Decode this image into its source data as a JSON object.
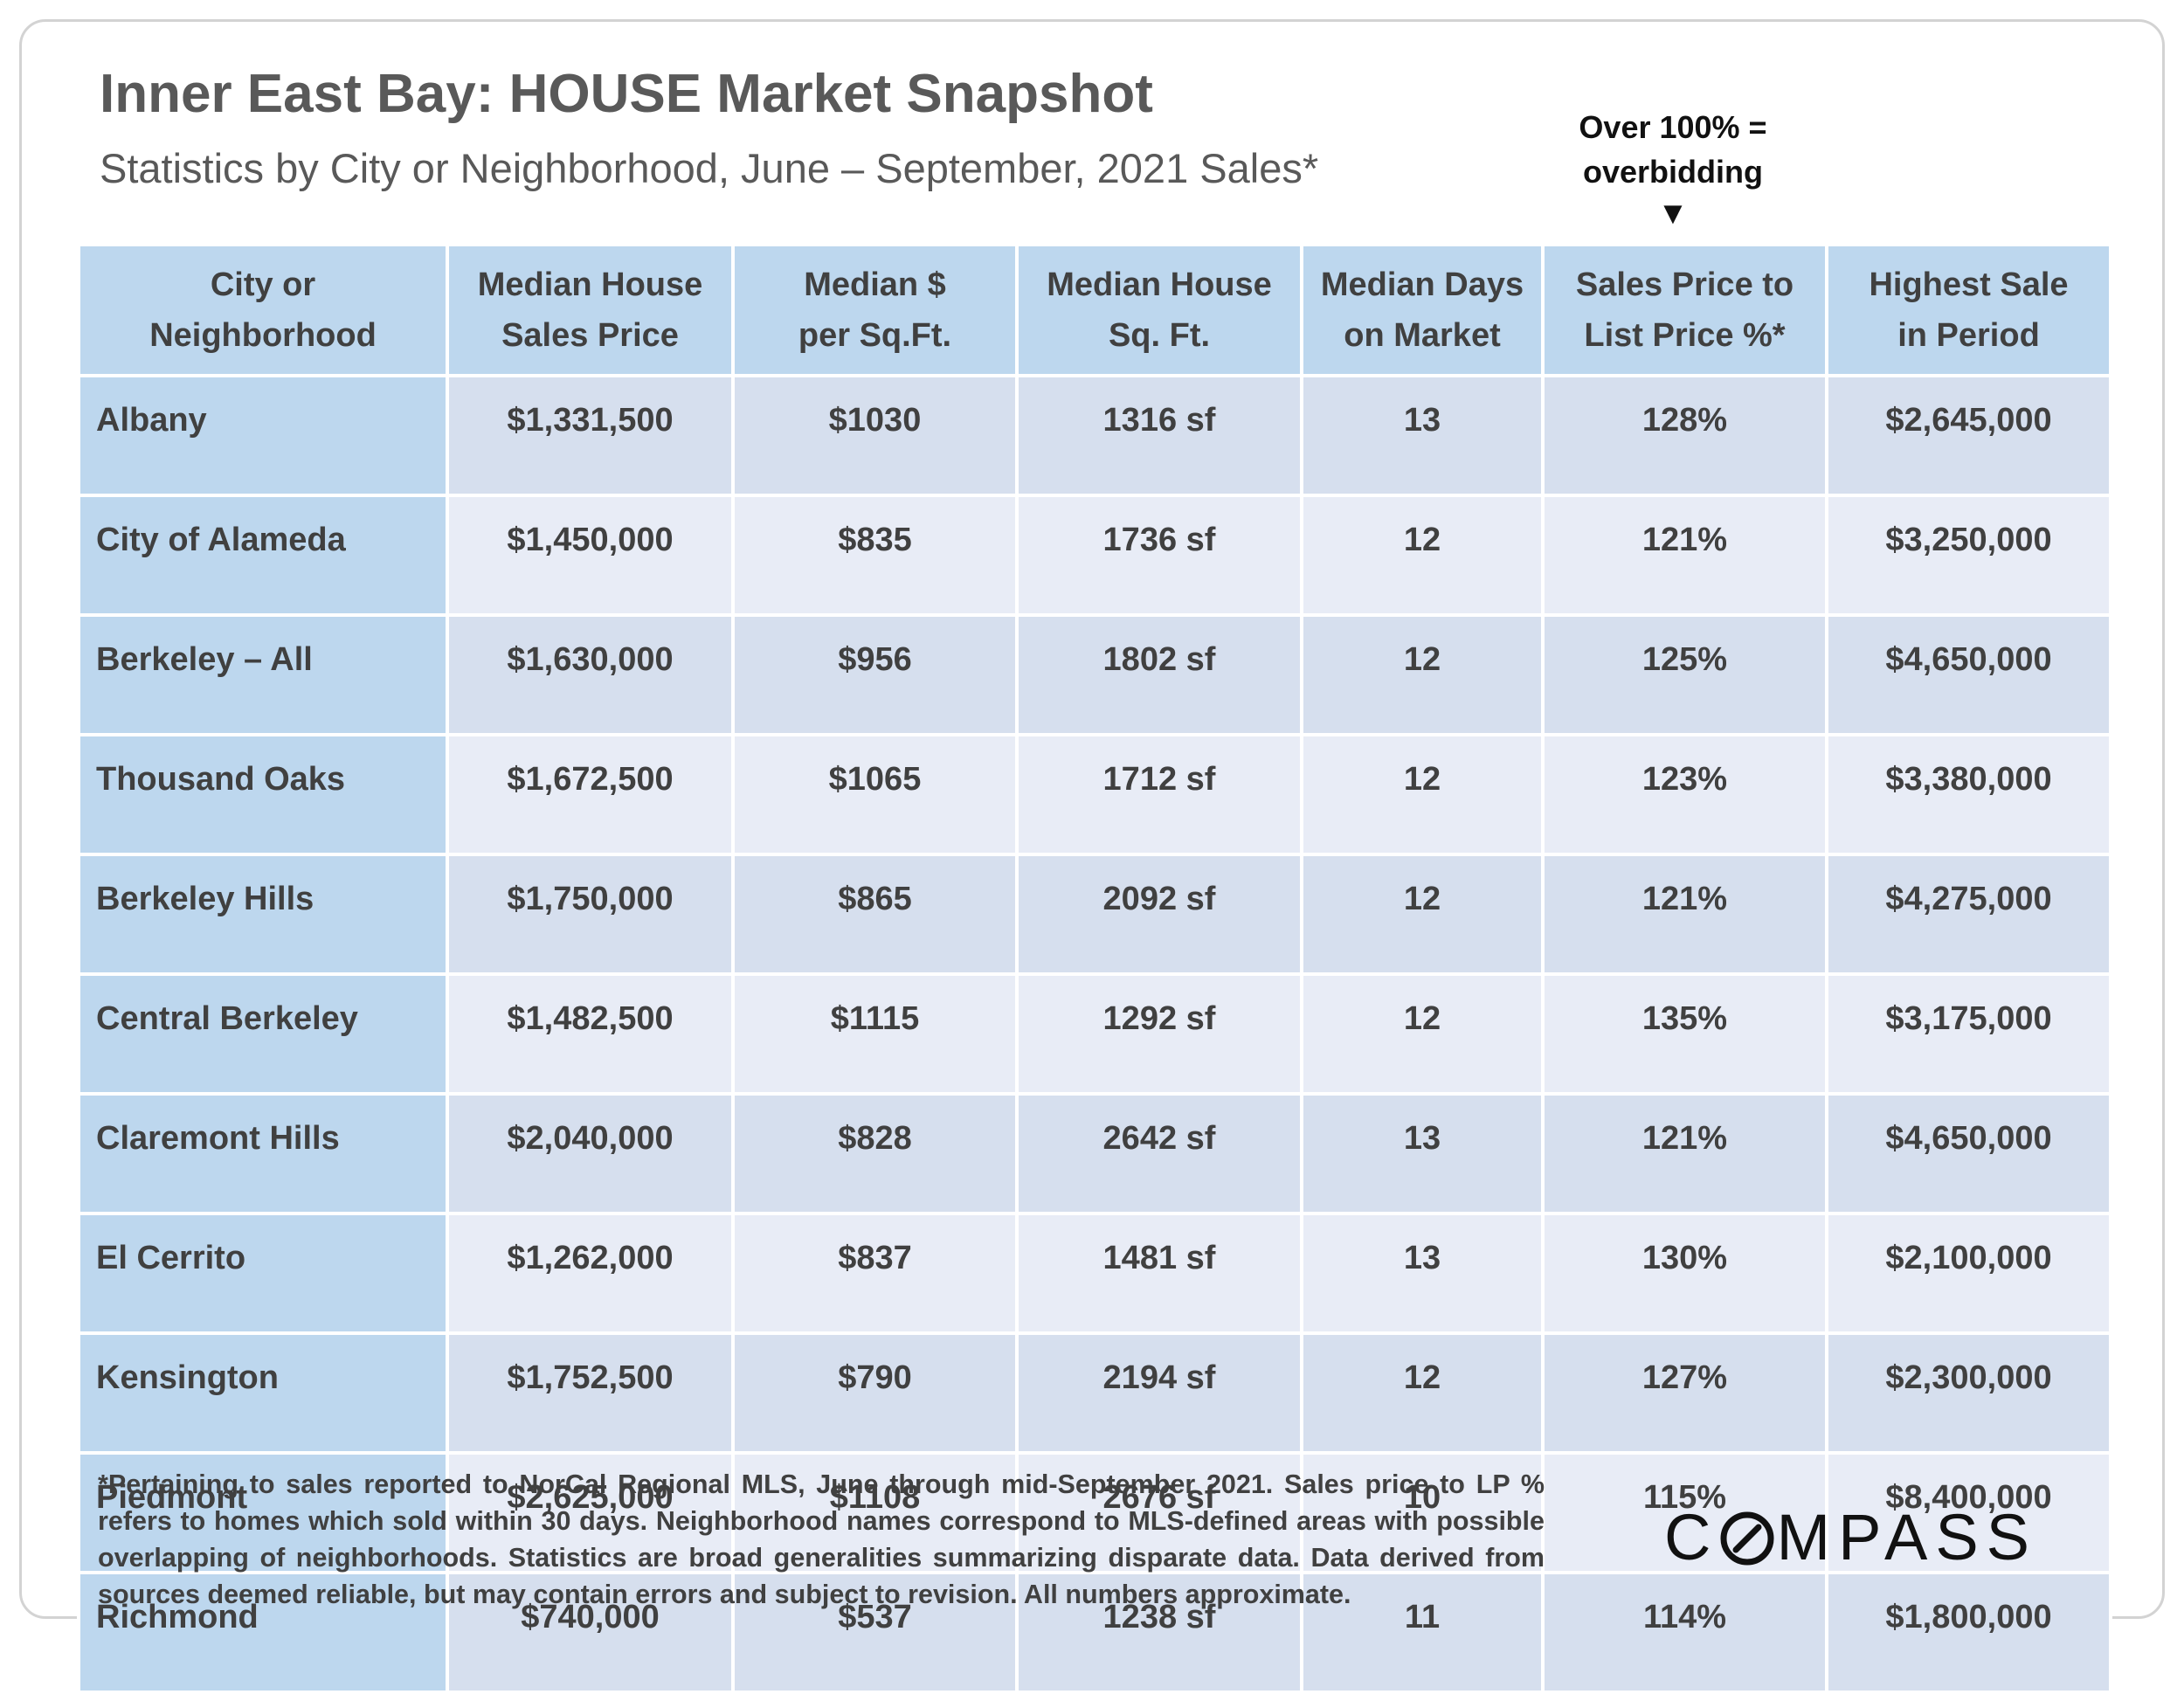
{
  "chart_data": {
    "type": "table",
    "title": "Inner East Bay: HOUSE Market Snapshot",
    "subtitle": "Statistics by City or Neighborhood, June – September, 2021 Sales*",
    "annotation": "Over 100% = overbidding",
    "annotation_arrow": "▼",
    "columns": [
      [
        "City or",
        "Neighborhood"
      ],
      [
        "Median House",
        "Sales Price"
      ],
      [
        "Median $",
        "per Sq.Ft."
      ],
      [
        "Median House",
        "Sq. Ft."
      ],
      [
        "Median Days",
        "on Market"
      ],
      [
        "Sales Price to",
        "List Price %*"
      ],
      [
        "Highest Sale",
        "in Period"
      ]
    ],
    "rows": [
      [
        "Albany",
        "$1,331,500",
        "$1030",
        "1316 sf",
        "13",
        "128%",
        "$2,645,000"
      ],
      [
        "City of Alameda",
        "$1,450,000",
        "$835",
        "1736 sf",
        "12",
        "121%",
        "$3,250,000"
      ],
      [
        "Berkeley – All",
        "$1,630,000",
        "$956",
        "1802 sf",
        "12",
        "125%",
        "$4,650,000"
      ],
      [
        "Thousand Oaks",
        "$1,672,500",
        "$1065",
        "1712 sf",
        "12",
        "123%",
        "$3,380,000"
      ],
      [
        "Berkeley Hills",
        "$1,750,000",
        "$865",
        "2092 sf",
        "12",
        "121%",
        "$4,275,000"
      ],
      [
        "Central Berkeley",
        "$1,482,500",
        "$1115",
        "1292 sf",
        "12",
        "135%",
        "$3,175,000"
      ],
      [
        "Claremont Hills",
        "$2,040,000",
        "$828",
        "2642 sf",
        "13",
        "121%",
        "$4,650,000"
      ],
      [
        "El Cerrito",
        "$1,262,000",
        "$837",
        "1481 sf",
        "13",
        "130%",
        "$2,100,000"
      ],
      [
        "Kensington",
        "$1,752,500",
        "$790",
        "2194 sf",
        "12",
        "127%",
        "$2,300,000"
      ],
      [
        "Piedmont",
        "$2,625,000",
        "$1108",
        "2676 sf",
        "10",
        "115%",
        "$8,400,000"
      ],
      [
        "Richmond",
        "$740,000",
        "$537",
        "1238 sf",
        "11",
        "114%",
        "$1,800,000"
      ]
    ],
    "footnote": "*Pertaining to sales reported to NorCal Regional MLS, June through mid-September 2021. Sales price to LP % refers to homes which sold within 30 days. Neighborhood names correspond to MLS-defined areas with possible overlapping of neighborhoods. Statistics are broad generalities summarizing disparate data. Data derived from sources deemed reliable, but may contain errors and subject to revision. All numbers approximate."
  },
  "brand": {
    "logo_prefix": "C",
    "logo_suffix": "MPASS",
    "logo_icon": "compass-o-icon"
  },
  "colors": {
    "header_fill": "#bdd7ee",
    "row_fill_odd": "#d6dfee",
    "row_fill_even": "#e8ecf6",
    "title_text": "#595959",
    "body_text": "#404040"
  }
}
